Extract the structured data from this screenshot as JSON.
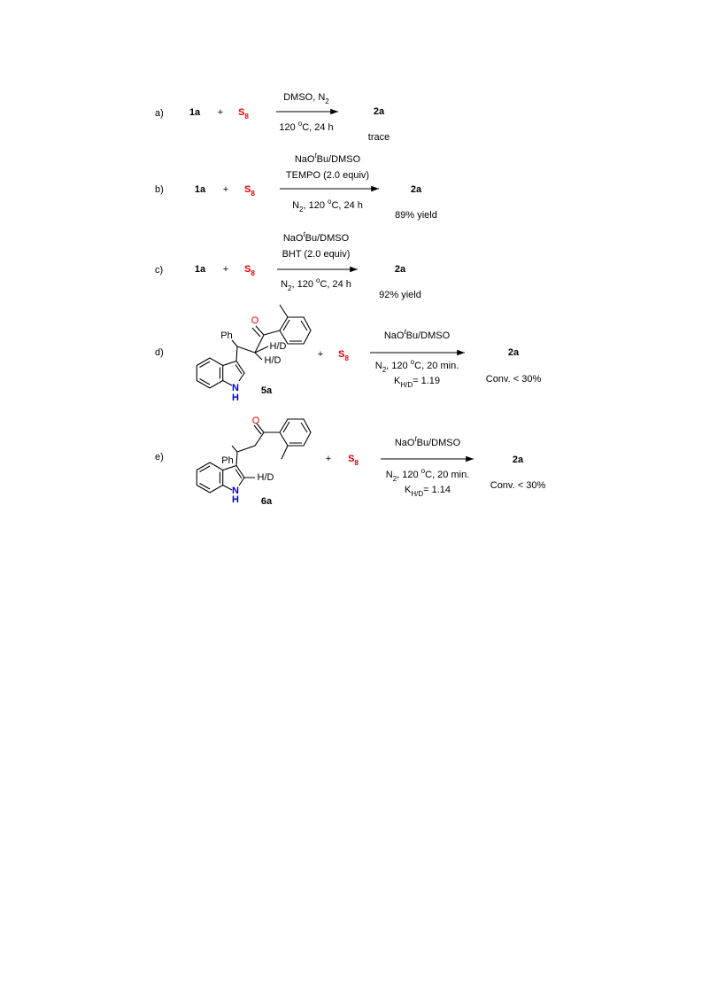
{
  "schemes": [
    {
      "label": "a)",
      "reactant": "1a",
      "plus": "+",
      "reagent": [
        {
          "text": "S"
        },
        {
          "sub": "8"
        }
      ],
      "above": [
        [
          {
            "text": "DMSO, N"
          },
          {
            "sub": "2"
          }
        ]
      ],
      "below": [
        [
          {
            "text": "120 "
          },
          {
            "sup": "o"
          },
          {
            "text": "C, 24 h"
          }
        ]
      ],
      "product": "2a",
      "result": "trace"
    },
    {
      "label": "b)",
      "reactant": "1a",
      "plus": "+",
      "reagent": [
        {
          "text": "S"
        },
        {
          "sub": "8"
        }
      ],
      "above": [
        [
          {
            "text": "NaO"
          },
          {
            "sup": "t"
          },
          {
            "text": "Bu/DMSO"
          }
        ],
        [
          {
            "text": "TEMPO (2.0 equiv)"
          }
        ]
      ],
      "below": [
        [
          {
            "text": "N"
          },
          {
            "sub": "2"
          },
          {
            "text": ", 120 "
          },
          {
            "sup": "o"
          },
          {
            "text": "C, 24 h"
          }
        ]
      ],
      "product": "2a",
      "result": "89% yield"
    },
    {
      "label": "c)",
      "reactant": "1a",
      "plus": "+",
      "reagent": [
        {
          "text": "S"
        },
        {
          "sub": "8"
        }
      ],
      "above": [
        [
          {
            "text": "NaO"
          },
          {
            "sup": "t"
          },
          {
            "text": "Bu/DMSO"
          }
        ],
        [
          {
            "text": "BHT (2.0 equiv)"
          }
        ]
      ],
      "below": [
        [
          {
            "text": "N"
          },
          {
            "sub": "2"
          },
          {
            "text": ", 120 "
          },
          {
            "sup": "o"
          },
          {
            "text": "C, 24 h"
          }
        ]
      ],
      "product": "2a",
      "result": "92% yield"
    },
    {
      "label": "d)",
      "structure": {
        "ph": "Ph",
        "o": "O",
        "hd": [
          "H/D",
          "H/D"
        ],
        "n": "N",
        "h": "H",
        "name": "5a"
      },
      "plus": "+",
      "reagent": [
        {
          "text": "S"
        },
        {
          "sub": "8"
        }
      ],
      "above": [
        [
          {
            "text": "NaO"
          },
          {
            "sup": "t"
          },
          {
            "text": "Bu/DMSO"
          }
        ]
      ],
      "below": [
        [
          {
            "text": "N"
          },
          {
            "sub": "2"
          },
          {
            "text": ", 120 "
          },
          {
            "sup": "o"
          },
          {
            "text": "C, 20 min."
          }
        ],
        [
          {
            "text": "K"
          },
          {
            "sub": "H/D"
          },
          {
            "text": "= 1.19"
          }
        ]
      ],
      "product": "2a",
      "result": "Conv. < 30%"
    },
    {
      "label": "e)",
      "structure": {
        "ph": "Ph",
        "o": "O",
        "hd": [
          "H/D"
        ],
        "n": "N",
        "h": "H",
        "name": "6a"
      },
      "plus": "+",
      "reagent": [
        {
          "text": "S"
        },
        {
          "sub": "8"
        }
      ],
      "above": [
        [
          {
            "text": "NaO"
          },
          {
            "sup": "t"
          },
          {
            "text": "Bu/DMSO"
          }
        ]
      ],
      "below": [
        [
          {
            "text": "N"
          },
          {
            "sub": "2"
          },
          {
            "text": ", 120 "
          },
          {
            "sup": "o"
          },
          {
            "text": "C, 20 min."
          }
        ],
        [
          {
            "text": "K"
          },
          {
            "sub": "H/D"
          },
          {
            "text": "= 1.14"
          }
        ]
      ],
      "product": "2a",
      "result": "Conv. < 30%"
    }
  ]
}
